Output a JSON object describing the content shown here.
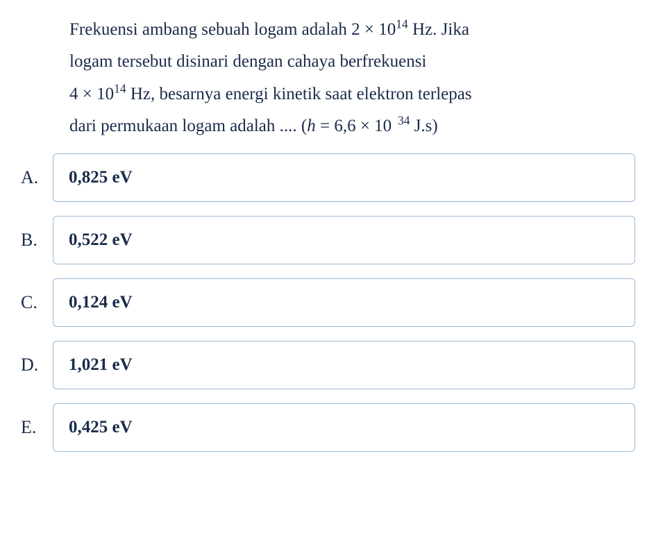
{
  "question": {
    "line1_a": "Frekuensi ambang sebuah logam adalah ",
    "line1_b": "2 × 10",
    "line1_exp": "14",
    "line1_c": " Hz. Jika",
    "line2": "logam tersebut disinari dengan cahaya berfrekuensi",
    "line3_a": "4 × 10",
    "line3_exp": "14",
    "line3_b": " Hz, besarnya energi kinetik saat elektron terlepas",
    "line4_a": "dari permukaan logam adalah .... (",
    "line4_h": "h",
    "line4_b": " = 6,6 × 10",
    "line4_exp_sp": "  ",
    "line4_exp": "34",
    "line4_c": " J.s)"
  },
  "options": [
    {
      "letter": "A.",
      "text": "0,825 eV"
    },
    {
      "letter": "B.",
      "text": "0,522 eV"
    },
    {
      "letter": "C.",
      "text": "0,124 eV"
    },
    {
      "letter": "D.",
      "text": "1,021 eV"
    },
    {
      "letter": "E.",
      "text": "0,425 eV"
    }
  ],
  "style": {
    "text_color": "#1a2b4a",
    "option_border_color": "#9bb8d4",
    "background": "#ffffff",
    "body_fontsize": 25,
    "option_fontsize": 25
  }
}
